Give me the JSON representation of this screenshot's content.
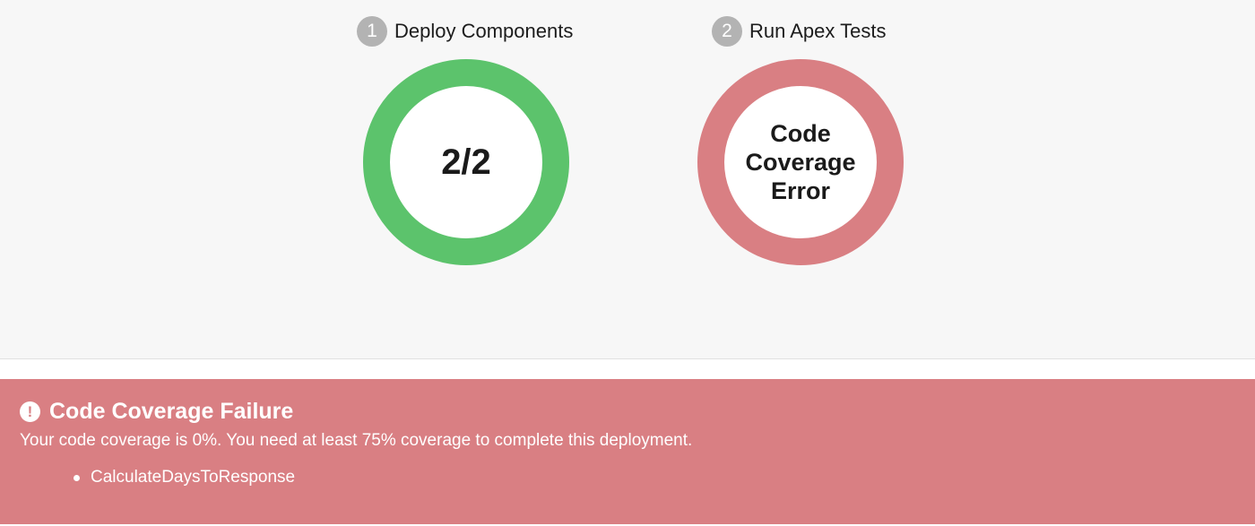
{
  "steps": [
    {
      "number": "1",
      "label": "Deploy Components",
      "status": "success",
      "value": "2/2",
      "ring_color": "#5cc36c"
    },
    {
      "number": "2",
      "label": "Run Apex Tests",
      "status": "error",
      "value": "Code Coverage Error",
      "ring_color": "#d97f83"
    }
  ],
  "alert": {
    "icon": "exclamation-circle-icon",
    "title": "Code Coverage Failure",
    "message": "Your code coverage is 0%. You need at least 75% coverage to complete this deployment.",
    "items": [
      "CalculateDaysToResponse"
    ],
    "background_color": "#d97f83"
  },
  "colors": {
    "panel_background": "#f7f7f7",
    "step_badge": "#b3b3b3",
    "success": "#5cc36c",
    "error": "#d97f83"
  }
}
